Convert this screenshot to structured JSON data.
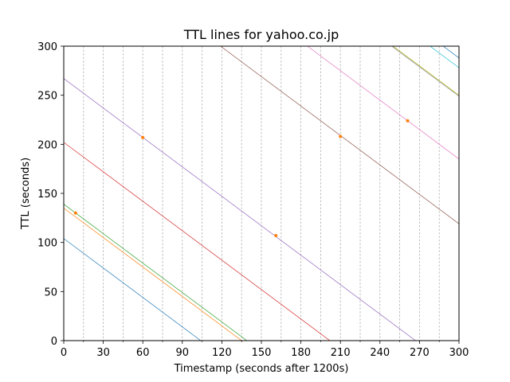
{
  "chart_data": {
    "type": "line",
    "title": "TTL lines for yahoo.co.jp",
    "xlabel": "Timestamp (seconds after 1200s)",
    "ylabel": "TTL (seconds)",
    "xlim": [
      0,
      300
    ],
    "ylim": [
      0,
      300
    ],
    "x_ticks": [
      0,
      30,
      60,
      90,
      120,
      150,
      180,
      210,
      240,
      270,
      300
    ],
    "y_ticks": [
      0,
      50,
      100,
      150,
      200,
      250,
      300
    ],
    "vertical_gridlines_every": 15,
    "vertical_gridline_style": "dashed gray",
    "horizontal_grid": false,
    "legend": "none",
    "series": [
      {
        "color": "#1f77b4",
        "x": [
          0,
          104
        ],
        "y": [
          104,
          0
        ]
      },
      {
        "color": "#ff7f0e",
        "x": [
          0,
          135
        ],
        "y": [
          135,
          0
        ]
      },
      {
        "color": "#2ca02c",
        "x": [
          0,
          139
        ],
        "y": [
          139,
          0
        ]
      },
      {
        "color": "#d62728",
        "x": [
          0,
          202
        ],
        "y": [
          202,
          0
        ]
      },
      {
        "color": "#9467bd",
        "x": [
          0,
          267
        ],
        "y": [
          267,
          0
        ]
      },
      {
        "color": "#8c564b",
        "x": [
          119,
          300
        ],
        "y": [
          300,
          119
        ]
      },
      {
        "color": "#e377c2",
        "x": [
          185,
          300
        ],
        "y": [
          300,
          185
        ]
      },
      {
        "color": "#7f7f7f",
        "x": [
          249,
          300
        ],
        "y": [
          300,
          249
        ]
      },
      {
        "color": "#bcbd22",
        "x": [
          250,
          300
        ],
        "y": [
          300,
          250
        ]
      },
      {
        "color": "#17becf",
        "x": [
          278,
          300
        ],
        "y": [
          300,
          278
        ]
      },
      {
        "color": "#1f77b4",
        "x": [
          288,
          300
        ],
        "y": [
          300,
          288
        ]
      }
    ],
    "points": {
      "color": "#ff7f0e",
      "values": [
        {
          "x": 9,
          "y": 130
        },
        {
          "x": 60,
          "y": 207
        },
        {
          "x": 161,
          "y": 107
        },
        {
          "x": 210,
          "y": 208
        },
        {
          "x": 261,
          "y": 224
        }
      ]
    }
  }
}
